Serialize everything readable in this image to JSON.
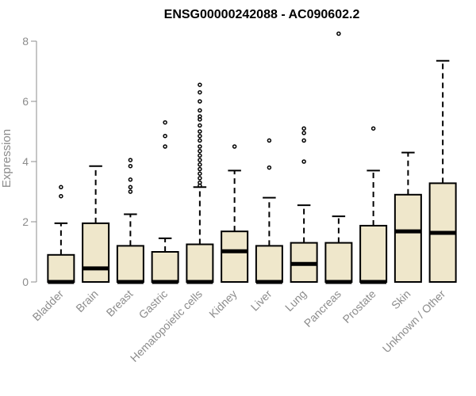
{
  "chart_data": {
    "type": "boxplot",
    "title": "ENSG00000242088 - AC090602.2",
    "xlabel": "",
    "ylabel": "Expression",
    "ylim": [
      0,
      8
    ],
    "yticks": [
      0,
      2,
      4,
      6,
      8
    ],
    "grid": false,
    "box_fill": "#efe7cb",
    "categories": [
      "Bladder",
      "Brain",
      "Breast",
      "Gastric",
      "Hematopoietic cells",
      "Kidney",
      "Liver",
      "Lung",
      "Pancreas",
      "Prostate",
      "Skin",
      "Unknown / Other"
    ],
    "boxes": [
      {
        "q1": 0,
        "median": 0,
        "q3": 0.9,
        "whisker_low": 0,
        "whisker_high": 1.95,
        "outliers": [
          2.85,
          3.15
        ]
      },
      {
        "q1": 0,
        "median": 0.45,
        "q3": 1.95,
        "whisker_low": 0,
        "whisker_high": 3.85,
        "outliers": []
      },
      {
        "q1": 0,
        "median": 0,
        "q3": 1.2,
        "whisker_low": 0,
        "whisker_high": 2.25,
        "outliers": [
          3.0,
          3.15,
          3.4,
          3.85,
          4.05
        ]
      },
      {
        "q1": 0,
        "median": 0,
        "q3": 1.0,
        "whisker_low": 0,
        "whisker_high": 1.45,
        "outliers": [
          4.5,
          4.85,
          5.3
        ]
      },
      {
        "q1": 0,
        "median": 0,
        "q3": 1.25,
        "whisker_low": 0,
        "whisker_high": 3.15,
        "outliers": [
          3.2,
          3.3,
          3.45,
          3.6,
          3.75,
          3.9,
          4.05,
          4.2,
          4.35,
          4.5,
          4.7,
          4.85,
          5.0,
          5.2,
          5.4,
          5.5,
          5.7,
          6.0,
          6.3,
          6.55
        ]
      },
      {
        "q1": 0,
        "median": 1.02,
        "q3": 1.68,
        "whisker_low": 0,
        "whisker_high": 3.7,
        "outliers": [
          4.5
        ]
      },
      {
        "q1": 0,
        "median": 0,
        "q3": 1.2,
        "whisker_low": 0,
        "whisker_high": 2.8,
        "outliers": [
          3.8,
          4.7
        ]
      },
      {
        "q1": 0,
        "median": 0.6,
        "q3": 1.3,
        "whisker_low": 0,
        "whisker_high": 2.55,
        "outliers": [
          4.0,
          4.7,
          4.95,
          5.1
        ]
      },
      {
        "q1": 0,
        "median": 0,
        "q3": 1.3,
        "whisker_low": 0,
        "whisker_high": 2.18,
        "outliers": [
          8.25
        ]
      },
      {
        "q1": 0,
        "median": 0,
        "q3": 1.87,
        "whisker_low": 0,
        "whisker_high": 3.7,
        "outliers": [
          5.1
        ]
      },
      {
        "q1": 0,
        "median": 1.68,
        "q3": 2.9,
        "whisker_low": 0,
        "whisker_high": 4.3,
        "outliers": []
      },
      {
        "q1": 0,
        "median": 1.63,
        "q3": 3.28,
        "whisker_low": 0,
        "whisker_high": 7.35,
        "outliers": []
      }
    ]
  }
}
